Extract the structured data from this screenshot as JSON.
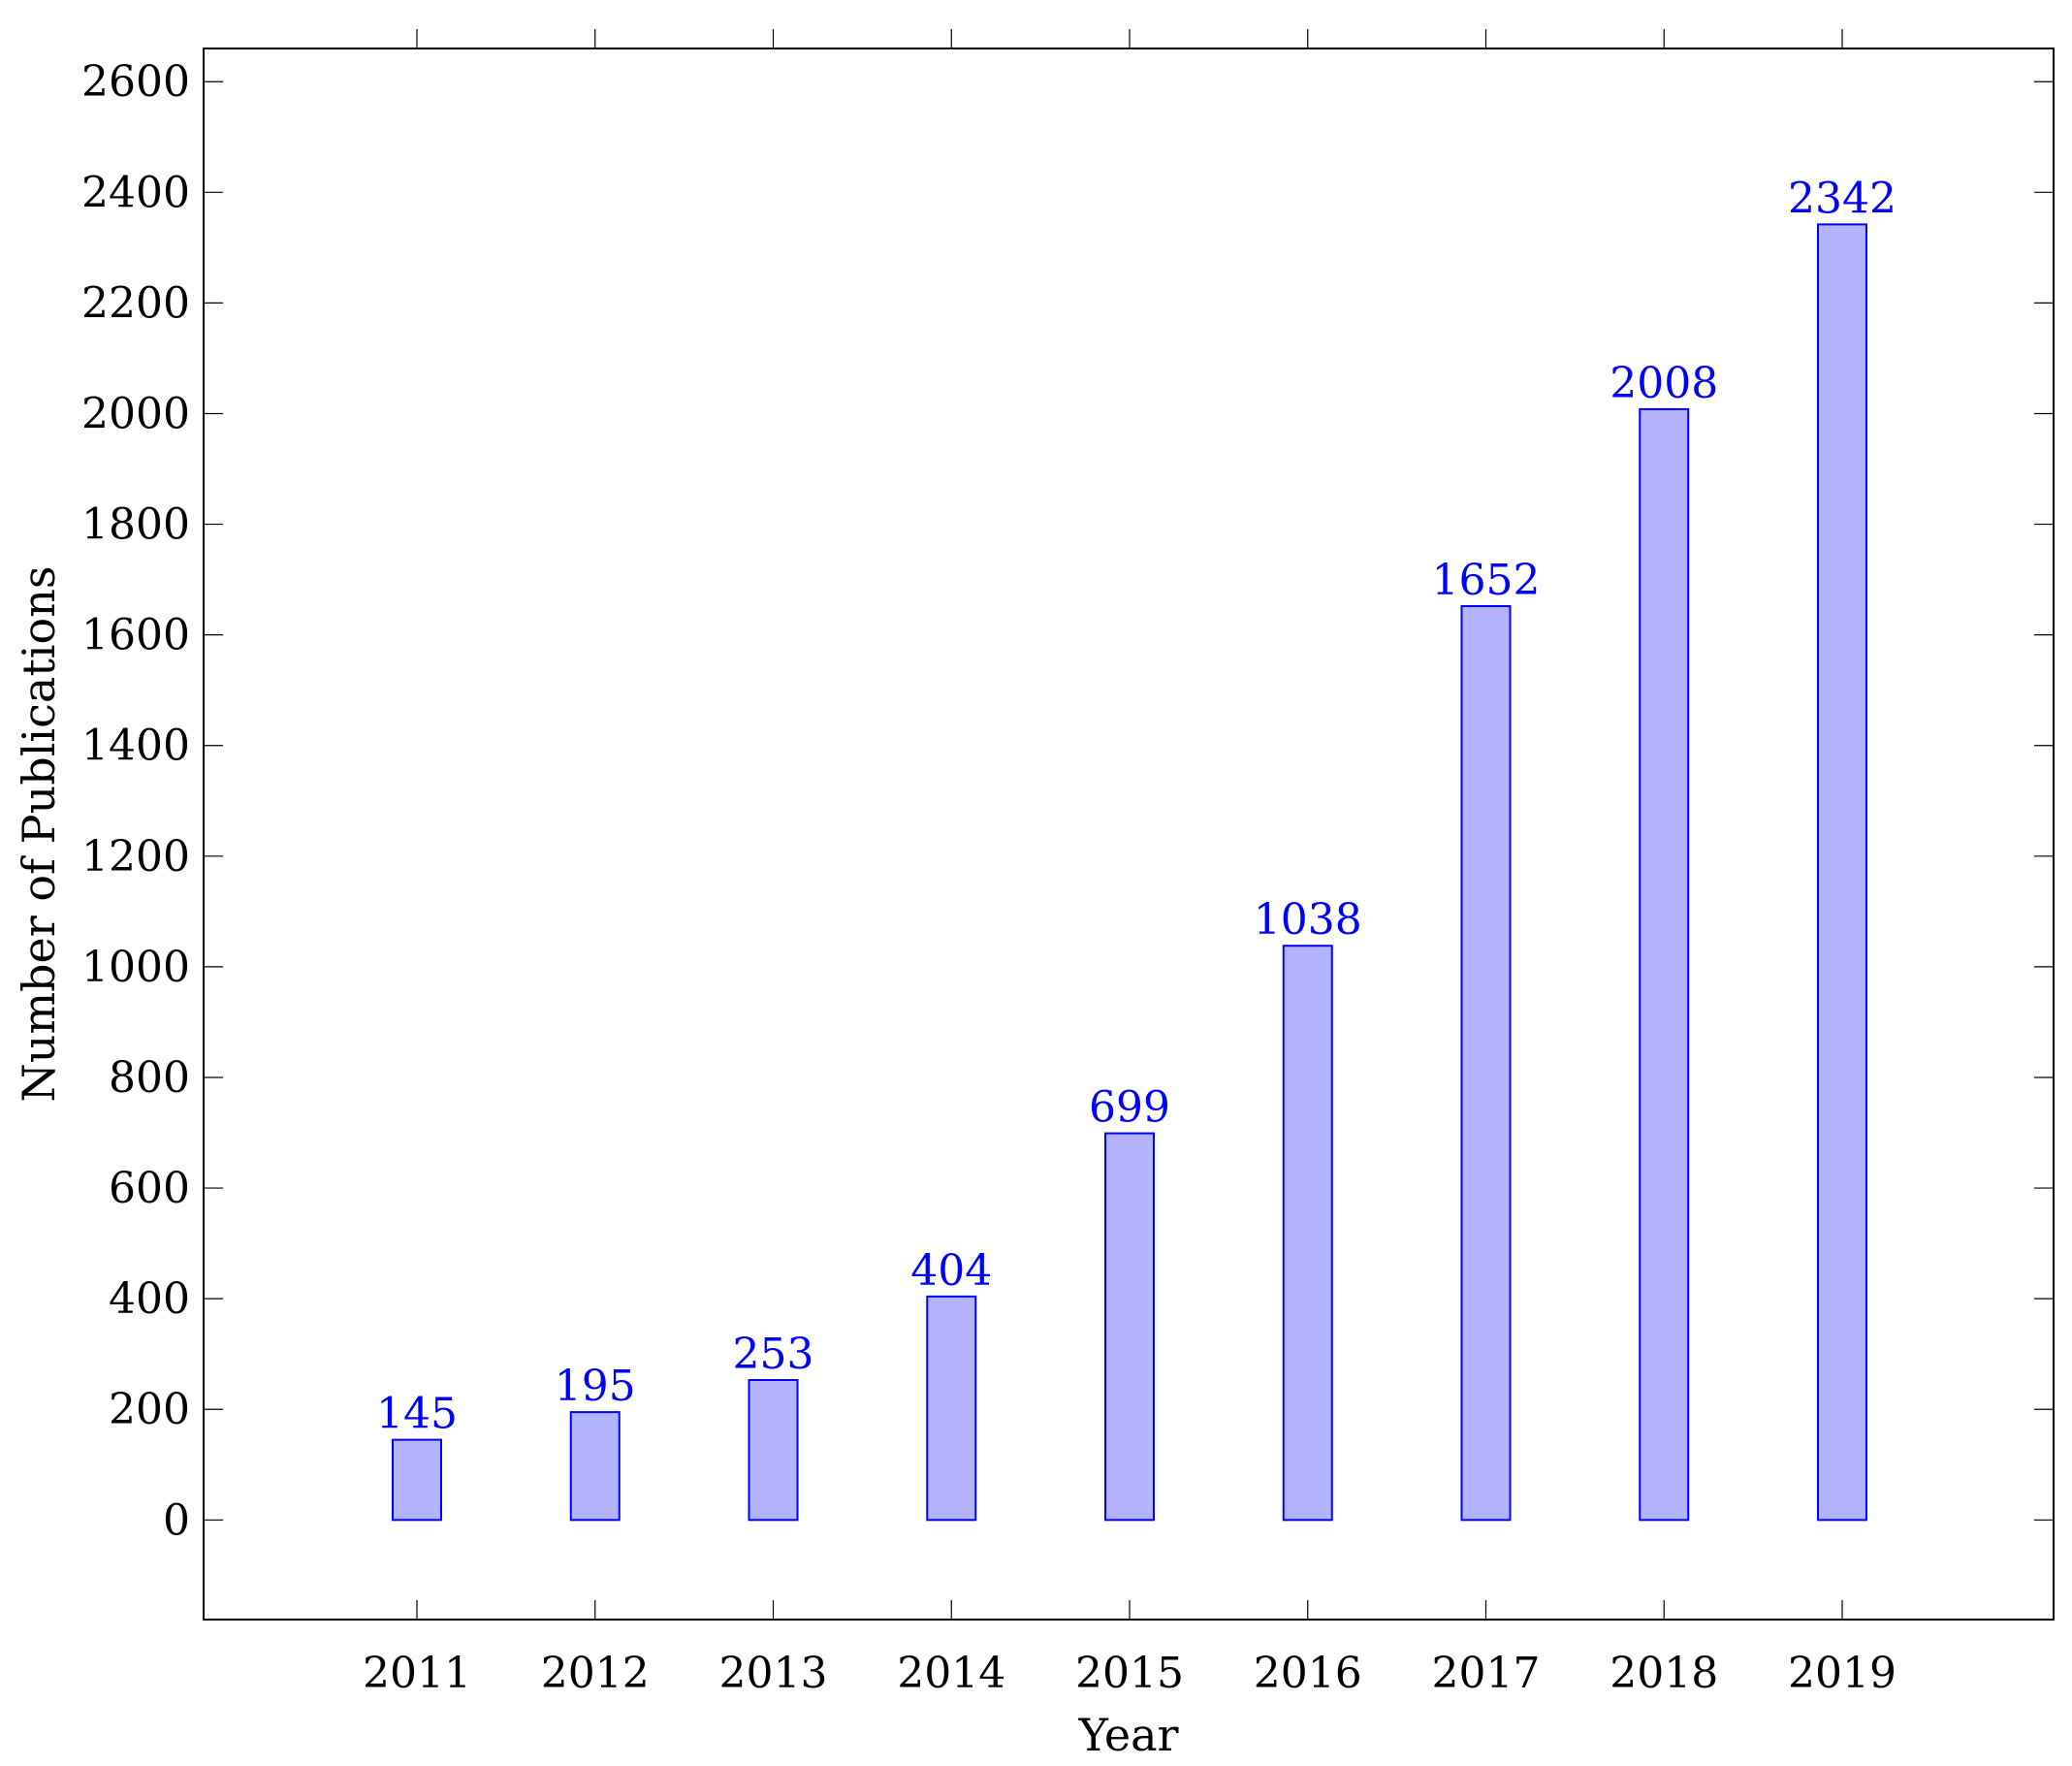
{
  "chart_data": {
    "type": "bar",
    "title": "",
    "xlabel": "Year",
    "ylabel": "Number of Publications",
    "categories": [
      "2011",
      "2012",
      "2013",
      "2014",
      "2015",
      "2016",
      "2017",
      "2018",
      "2019"
    ],
    "values": [
      145,
      195,
      253,
      404,
      699,
      1038,
      1652,
      2008,
      2342
    ],
    "data_labels": [
      "145",
      "195",
      "253",
      "404",
      "699",
      "1038",
      "1652",
      "2008",
      "2342"
    ],
    "ylim": [
      -180,
      2660
    ],
    "yticks": [
      0,
      200,
      400,
      600,
      800,
      1000,
      1200,
      1400,
      1600,
      1800,
      2000,
      2200,
      2400,
      2600
    ],
    "grid": false,
    "legend": "none",
    "colors": {
      "bar_fill": "#b3b3ff",
      "bar_stroke": "#0000ff",
      "data_label": "#0000ff",
      "axis": "#000000"
    }
  }
}
